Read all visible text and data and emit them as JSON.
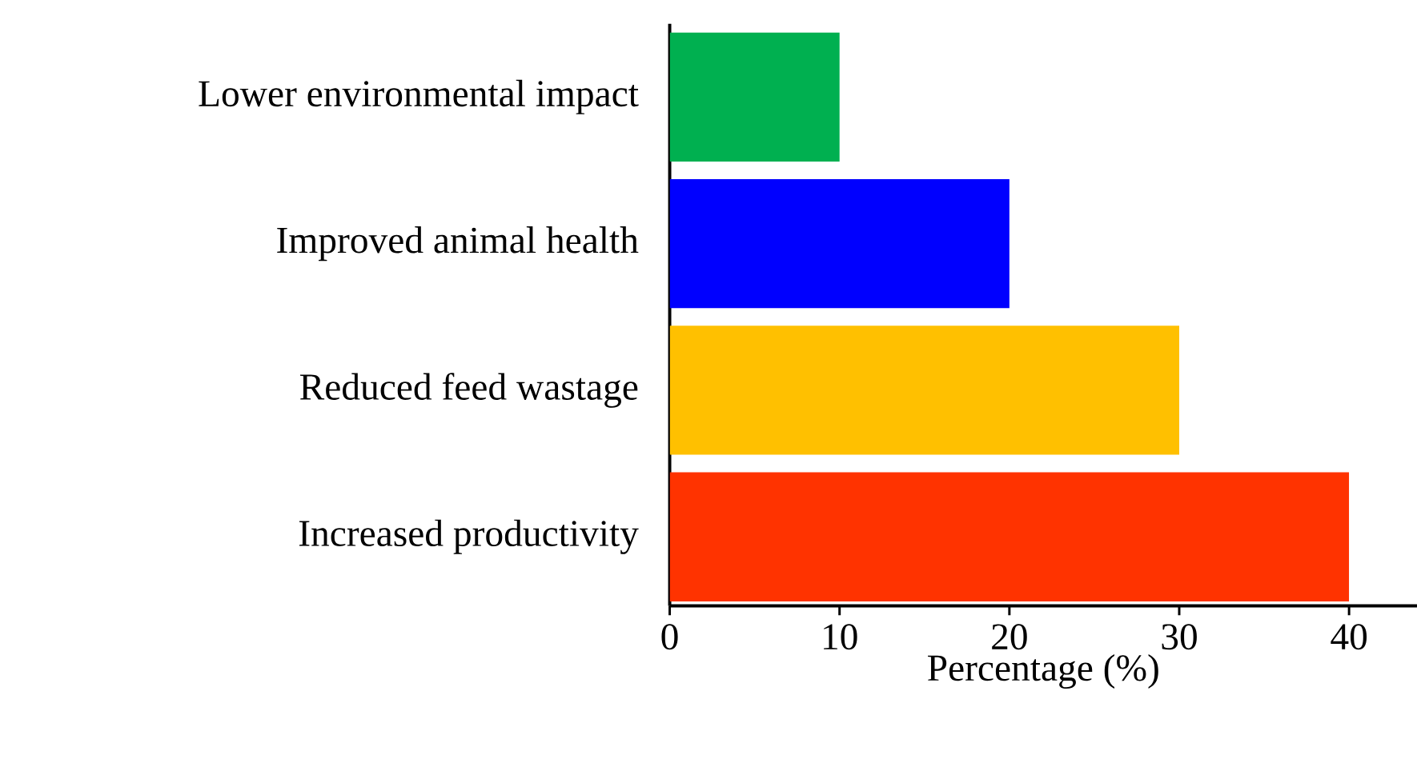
{
  "chart_data": {
    "type": "bar",
    "orientation": "horizontal",
    "xlabel": "Percentage (%)",
    "categories": [
      "Lower environmental impact",
      "Improved animal health",
      "Reduced feed wastage",
      "Increased productivity"
    ],
    "values": [
      10,
      20,
      30,
      40
    ],
    "colors": [
      "#00b050",
      "#0000ff",
      "#ffc000",
      "#ff3300"
    ],
    "xlim": [
      0,
      44
    ],
    "xticks": [
      0,
      10,
      20,
      30,
      40
    ]
  }
}
